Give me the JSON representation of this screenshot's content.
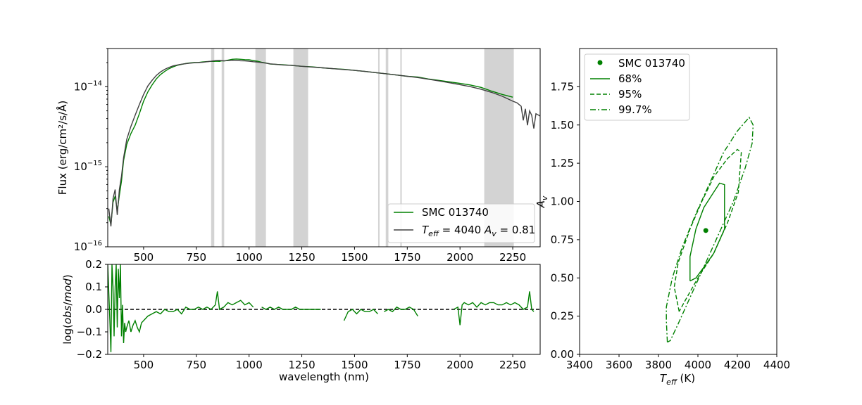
{
  "chart_data": [
    {
      "panel": "spectrum",
      "type": "line",
      "ylabel": "Flux (erg/cm²/s/Å)",
      "xlabel": "",
      "xlim": [
        330,
        2380
      ],
      "ylim": [
        1e-16,
        3e-14
      ],
      "yscale": "log",
      "xticks": [
        500,
        750,
        1000,
        1250,
        1500,
        1750,
        2000,
        2250
      ],
      "yticks": [
        {
          "value": 1e-16,
          "base": "10",
          "exp": "−16"
        },
        {
          "value": 1e-15,
          "base": "10",
          "exp": "−15"
        },
        {
          "value": 1e-14,
          "base": "10",
          "exp": "−14"
        }
      ],
      "masked_bands": [
        [
          820,
          835
        ],
        [
          870,
          882
        ],
        [
          1030,
          1080
        ],
        [
          1210,
          1280
        ],
        [
          1612,
          1618
        ],
        [
          1648,
          1660
        ],
        [
          1717,
          1724
        ],
        [
          2115,
          2255
        ]
      ],
      "legend_position": "lower right",
      "series": [
        {
          "name": "SMC 013740",
          "color": "#008000",
          "x": [
            335,
            345,
            355,
            365,
            375,
            385,
            395,
            405,
            420,
            440,
            460,
            480,
            500,
            520,
            540,
            560,
            580,
            600,
            620,
            640,
            660,
            680,
            700,
            720,
            740,
            760,
            780,
            800,
            820,
            835,
            845,
            860,
            870,
            885,
            900,
            920,
            940,
            960,
            980,
            1000,
            1020,
            1040,
            1060,
            1080,
            1100,
            1130,
            1160,
            1200,
            1250,
            1300,
            1350,
            1400,
            1450,
            1500,
            1550,
            1600,
            1650,
            1700,
            1750,
            1800,
            1850,
            1900,
            1950,
            2000,
            2050,
            2100,
            2150,
            2200,
            2250
          ],
          "y": [
            2.4e-16,
            1.9e-16,
            3.6e-16,
            4.3e-16,
            2.8e-16,
            4.4e-16,
            6.6e-16,
            1.2e-15,
            1.9e-15,
            2.6e-15,
            3.3e-15,
            4.6e-15,
            6.6e-15,
            8.6e-15,
            1.05e-14,
            1.25e-14,
            1.42e-14,
            1.55e-14,
            1.68e-14,
            1.77e-14,
            1.85e-14,
            1.9e-14,
            1.95e-14,
            1.98e-14,
            2e-14,
            2.01e-14,
            2.04e-14,
            2.06e-14,
            2.07e-14,
            2.07e-14,
            2.08e-14,
            2.07e-14,
            2.1e-14,
            2.1e-14,
            2.15e-14,
            2.2e-14,
            2.22e-14,
            2.2e-14,
            2.18e-14,
            2.17e-14,
            2.12e-14,
            2.08e-14,
            2.02e-14,
            1.98e-14,
            1.92e-14,
            1.9e-14,
            1.88e-14,
            1.85e-14,
            1.8e-14,
            1.77e-14,
            1.72e-14,
            1.68e-14,
            1.65e-14,
            1.6e-14,
            1.55e-14,
            1.5e-14,
            1.45e-14,
            1.4e-14,
            1.35e-14,
            1.32e-14,
            1.25e-14,
            1.2e-14,
            1.15e-14,
            1.1e-14,
            1.05e-14,
            9.8e-15,
            8.8e-15,
            8e-15,
            7.4e-15
          ]
        },
        {
          "name": "T_eff = 4040 A_v = 0.81",
          "color": "#404040",
          "x": [
            335,
            345,
            355,
            365,
            375,
            385,
            395,
            405,
            420,
            440,
            460,
            480,
            500,
            520,
            540,
            560,
            580,
            600,
            620,
            640,
            660,
            680,
            700,
            720,
            740,
            760,
            780,
            800,
            820,
            840,
            860,
            880,
            900,
            920,
            940,
            960,
            980,
            1000,
            1020,
            1040,
            1060,
            1080,
            1100,
            1130,
            1160,
            1200,
            1250,
            1300,
            1350,
            1400,
            1450,
            1500,
            1550,
            1600,
            1650,
            1700,
            1750,
            1800,
            1850,
            1900,
            1950,
            2000,
            2050,
            2100,
            2150,
            2200,
            2250,
            2270,
            2290,
            2300,
            2310,
            2320,
            2330,
            2340,
            2350,
            2360,
            2380
          ],
          "y": [
            3e-16,
            1.8e-16,
            4e-16,
            5.2e-16,
            2.5e-16,
            5.2e-16,
            7.6e-16,
            1.3e-15,
            2.2e-15,
            3.2e-15,
            4.4e-15,
            6e-15,
            8e-15,
            1.02e-14,
            1.2e-14,
            1.38e-14,
            1.53e-14,
            1.65e-14,
            1.74e-14,
            1.82e-14,
            1.87e-14,
            1.91e-14,
            1.94e-14,
            1.97e-14,
            1.99e-14,
            2e-14,
            2.02e-14,
            2.05e-14,
            2.08e-14,
            2.12e-14,
            2.13e-14,
            2.1e-14,
            2.12e-14,
            2.14e-14,
            2.13e-14,
            2.11e-14,
            2.1e-14,
            2.08e-14,
            2.05e-14,
            2.03e-14,
            2e-14,
            1.97e-14,
            1.93e-14,
            1.9e-14,
            1.87e-14,
            1.85e-14,
            1.8e-14,
            1.76e-14,
            1.72e-14,
            1.68e-14,
            1.64e-14,
            1.6e-14,
            1.55e-14,
            1.5e-14,
            1.45e-14,
            1.4e-14,
            1.35e-14,
            1.3e-14,
            1.24e-14,
            1.18e-14,
            1.12e-14,
            1.06e-14,
            1e-14,
            9.3e-15,
            8.5e-15,
            7.6e-15,
            6.6e-15,
            6.3e-15,
            5.7e-15,
            3.8e-15,
            5.3e-15,
            3.3e-15,
            5e-15,
            4.4e-15,
            3e-15,
            4.6e-15,
            4.3e-15
          ]
        }
      ]
    },
    {
      "panel": "residuals",
      "type": "line",
      "xlabel": "wavelength (nm)",
      "ylabel": "log(obs/mod)",
      "xlim": [
        330,
        2380
      ],
      "ylim": [
        -0.2,
        0.2
      ],
      "xticks": [
        500,
        750,
        1000,
        1250,
        1500,
        1750,
        2000,
        2250
      ],
      "yticks": [
        -0.2,
        -0.1,
        0.0,
        0.1,
        0.2
      ],
      "reference_line": 0.0,
      "series": [
        {
          "name": "",
          "color": "#008000",
          "segments": [
            {
              "x": [
                330,
                340,
                345,
                350,
                355,
                360,
                365,
                370,
                375,
                380,
                385,
                390,
                395,
                400,
                405,
                410,
                415,
                420,
                430,
                440,
                450,
                460,
                470,
                480,
                490,
                500,
                520,
                540,
                560,
                580,
                600,
                620,
                640,
                660,
                680,
                700,
                720,
                740,
                760,
                780,
                800,
                820,
                840,
                850,
                860,
                880,
                900,
                920,
                940,
                960,
                980,
                1000,
                1020
              ],
              "y": [
                0.2,
                -0.05,
                -0.19,
                0.2,
                0.1,
                -0.12,
                0.1,
                0.2,
                -0.08,
                0.18,
                0.05,
                0.2,
                -0.12,
                0.02,
                -0.15,
                -0.06,
                -0.1,
                -0.08,
                -0.05,
                -0.1,
                -0.07,
                -0.05,
                -0.08,
                -0.1,
                -0.06,
                -0.05,
                -0.03,
                -0.02,
                -0.01,
                -0.02,
                0.0,
                -0.01,
                -0.01,
                0.0,
                -0.02,
                0.01,
                0.0,
                0.0,
                0.01,
                0.0,
                0.01,
                0.0,
                0.02,
                0.08,
                0.0,
                0.01,
                0.03,
                0.02,
                0.03,
                0.04,
                0.02,
                0.03,
                0.01
              ]
            },
            {
              "x": [
                1060,
                1080,
                1100,
                1120,
                1140,
                1160,
                1180,
                1200,
                1220,
                1240,
                1260,
                1280,
                1300,
                1320,
                1340
              ],
              "y": [
                0.01,
                0.0,
                0.01,
                0.0,
                0.01,
                0.0,
                0.0,
                0.0,
                0.01,
                0.0,
                0.0,
                0.0,
                0.0,
                0.0,
                0.0
              ]
            },
            {
              "x": [
                1450,
                1470,
                1490,
                1510,
                1530,
                1550,
                1570,
                1590,
                1610
              ],
              "y": [
                -0.05,
                -0.01,
                0.0,
                -0.02,
                0.0,
                -0.01,
                -0.01,
                0.0,
                -0.02
              ]
            },
            {
              "x": [
                1640,
                1660,
                1680,
                1700,
                1720,
                1740,
                1760,
                1780,
                1800
              ],
              "y": [
                -0.01,
                0.0,
                -0.01,
                0.01,
                0.0,
                0.0,
                0.01,
                0.0,
                -0.03
              ]
            },
            {
              "x": [
                1970,
                1990,
                2000,
                2010,
                2020,
                2040,
                2060,
                2080,
                2100,
                2120,
                2140,
                2160,
                2180,
                2200,
                2220,
                2240,
                2260,
                2280,
                2300,
                2320,
                2330,
                2340,
                2350
              ],
              "y": [
                0.0,
                0.01,
                -0.07,
                0.02,
                0.03,
                0.02,
                0.03,
                0.01,
                0.03,
                0.02,
                0.03,
                0.03,
                0.02,
                0.02,
                0.03,
                0.02,
                0.03,
                0.02,
                0.0,
                0.01,
                0.08,
                0.0,
                -0.01
              ]
            }
          ]
        }
      ]
    },
    {
      "panel": "contours",
      "type": "scatter",
      "xlabel": "T_eff (K)",
      "ylabel": "A_v",
      "xlim": [
        3400,
        4400
      ],
      "ylim": [
        0.0,
        2.0
      ],
      "xticks": [
        3400,
        3600,
        3800,
        4000,
        4200,
        4400
      ],
      "yticks": [
        0.0,
        0.25,
        0.5,
        0.75,
        1.0,
        1.25,
        1.5,
        1.75
      ],
      "legend_position": "upper left",
      "series": [
        {
          "name": "SMC 013740",
          "color": "#008000",
          "x": [
            4040
          ],
          "y": [
            0.81
          ],
          "marker": "o"
        },
        {
          "name": "68%",
          "color": "#008000",
          "style": "solid",
          "x": [
            3960,
            3960,
            3990,
            4030,
            4070,
            4110,
            4135,
            4135,
            4080,
            4030,
            3990,
            3960
          ],
          "y": [
            0.48,
            0.64,
            0.82,
            0.96,
            1.04,
            1.12,
            1.11,
            0.82,
            0.66,
            0.57,
            0.5,
            0.48
          ]
        },
        {
          "name": "95%",
          "color": "#008000",
          "style": "dashed",
          "x": [
            3905,
            3880,
            3900,
            3960,
            4020,
            4080,
            4150,
            4200,
            4220,
            4205,
            4150,
            4080,
            4000,
            3930,
            3905
          ],
          "y": [
            0.28,
            0.44,
            0.6,
            0.82,
            1.0,
            1.16,
            1.28,
            1.34,
            1.32,
            1.06,
            0.86,
            0.66,
            0.5,
            0.34,
            0.28
          ]
        },
        {
          "name": "99.7%",
          "color": "#008000",
          "style": "dashdot",
          "x": [
            3845,
            3840,
            3840,
            3870,
            3920,
            3990,
            4060,
            4130,
            4200,
            4260,
            4280,
            4275,
            4240,
            4180,
            4110,
            4040,
            3970,
            3900,
            3860,
            3845
          ],
          "y": [
            0.08,
            0.22,
            0.31,
            0.5,
            0.7,
            0.92,
            1.12,
            1.32,
            1.46,
            1.55,
            1.5,
            1.38,
            1.22,
            1.0,
            0.8,
            0.6,
            0.4,
            0.2,
            0.09,
            0.08
          ]
        }
      ]
    }
  ],
  "legend_spectrum": {
    "entry1": "SMC 013740",
    "entry2_main": "T",
    "entry2_sub": "eff",
    "entry2_eq": " = 4040 ",
    "entry2_a": "A",
    "entry2_asub": "v",
    "entry2_val": " = 0.81"
  },
  "legend_contour": {
    "point": "SMC 013740",
    "c68": "68%",
    "c95": "95%",
    "c997": "99.7%"
  }
}
